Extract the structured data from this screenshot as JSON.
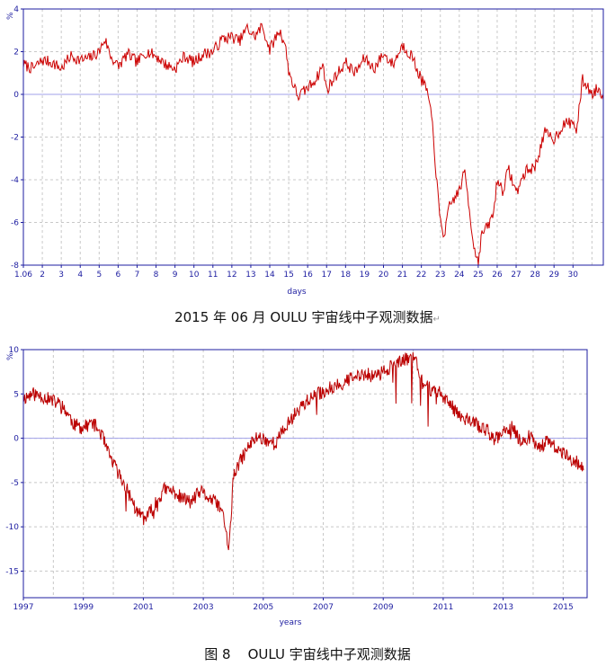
{
  "chart_data": [
    {
      "type": "line",
      "title": "2015 年 06 月 OULU 宇宙线中子观测数据",
      "ylabel": "%",
      "xlabel": "days",
      "ylim": [
        -8,
        4
      ],
      "yticks": [
        -8,
        -6,
        -4,
        -2,
        0,
        2,
        4
      ],
      "xlim": [
        1,
        31.6
      ],
      "xticks": [
        {
          "v": 1,
          "label": "1.06"
        },
        {
          "v": 2,
          "label": "2"
        },
        {
          "v": 3,
          "label": "3"
        },
        {
          "v": 4,
          "label": "4"
        },
        {
          "v": 5,
          "label": "5"
        },
        {
          "v": 6,
          "label": "6"
        },
        {
          "v": 7,
          "label": "7"
        },
        {
          "v": 8,
          "label": "8"
        },
        {
          "v": 9,
          "label": "9"
        },
        {
          "v": 10,
          "label": "10"
        },
        {
          "v": 11,
          "label": "11"
        },
        {
          "v": 12,
          "label": "12"
        },
        {
          "v": 13,
          "label": "13"
        },
        {
          "v": 14,
          "label": "14"
        },
        {
          "v": 15,
          "label": "15"
        },
        {
          "v": 16,
          "label": "16"
        },
        {
          "v": 17,
          "label": "17"
        },
        {
          "v": 18,
          "label": "18"
        },
        {
          "v": 19,
          "label": "19"
        },
        {
          "v": 20,
          "label": "20"
        },
        {
          "v": 21,
          "label": "21"
        },
        {
          "v": 22,
          "label": "22"
        },
        {
          "v": 23,
          "label": "23"
        },
        {
          "v": 24,
          "label": "24"
        },
        {
          "v": 25,
          "label": "25"
        },
        {
          "v": 26,
          "label": "26"
        },
        {
          "v": 27,
          "label": "27"
        },
        {
          "v": 28,
          "label": "28"
        },
        {
          "v": 29,
          "label": "29"
        },
        {
          "v": 30,
          "label": "30"
        }
      ],
      "grid": true,
      "line_color": "#cc0000",
      "series": [
        {
          "x": [
            1.0,
            1.5,
            2.0,
            2.5,
            3.0,
            3.5,
            4.0,
            4.5,
            5.0,
            5.3,
            5.6,
            6.0,
            6.5,
            7.0,
            7.5,
            8.0,
            8.5,
            9.0,
            9.5,
            10.0,
            10.5,
            11.0,
            11.5,
            12.0,
            12.4,
            12.8,
            13.2,
            13.6,
            14.0,
            14.5,
            14.8,
            15.0,
            15.3,
            15.5,
            16.0,
            16.5,
            16.8,
            17.0,
            17.5,
            18.0,
            18.5,
            19.0,
            19.5,
            20.0,
            20.5,
            21.0,
            21.5,
            21.8,
            22.0,
            22.3,
            22.6,
            22.8,
            23.0,
            23.2,
            23.5,
            24.0,
            24.3,
            24.6,
            24.8,
            25.0,
            25.2,
            25.5,
            25.8,
            26.0,
            26.3,
            26.6,
            27.0,
            27.5,
            28.0,
            28.5,
            29.0,
            29.5,
            30.0,
            30.2,
            30.5,
            30.8,
            31.0,
            31.3,
            31.6
          ],
          "y": [
            1.4,
            1.2,
            1.6,
            1.5,
            1.2,
            1.8,
            1.6,
            1.7,
            2.0,
            2.6,
            1.8,
            1.3,
            1.9,
            1.5,
            2.0,
            1.8,
            1.4,
            1.2,
            1.8,
            1.5,
            1.9,
            2.0,
            2.6,
            2.7,
            2.5,
            3.1,
            2.7,
            3.2,
            2.1,
            3.0,
            2.4,
            1.1,
            0.3,
            -0.1,
            0.3,
            0.8,
            1.4,
            0.2,
            0.9,
            1.5,
            1.0,
            1.7,
            1.2,
            1.9,
            1.4,
            2.3,
            1.8,
            1.1,
            0.7,
            0.2,
            -1.5,
            -4.0,
            -6.0,
            -6.6,
            -5.2,
            -4.5,
            -3.6,
            -5.9,
            -7.3,
            -7.8,
            -6.5,
            -6.2,
            -5.6,
            -4.0,
            -4.5,
            -3.5,
            -4.6,
            -3.6,
            -3.4,
            -1.8,
            -2.1,
            -1.4,
            -1.3,
            -1.7,
            0.7,
            0.3,
            0.0,
            0.3,
            -0.1
          ]
        }
      ]
    },
    {
      "type": "line",
      "title": "图 8    OULU 宇宙线中子观测数据",
      "ylabel": "%",
      "xlabel": "years",
      "ylim": [
        -18,
        10
      ],
      "yticks": [
        -15,
        -10,
        -5,
        0,
        5,
        10
      ],
      "xlim": [
        1997,
        2015.8
      ],
      "xticks": [
        {
          "v": 1997,
          "label": "1997"
        },
        {
          "v": 1999,
          "label": "1999"
        },
        {
          "v": 2001,
          "label": "2001"
        },
        {
          "v": 2003,
          "label": "2003"
        },
        {
          "v": 2005,
          "label": "2005"
        },
        {
          "v": 2007,
          "label": "2007"
        },
        {
          "v": 2009,
          "label": "2009"
        },
        {
          "v": 2011,
          "label": "2011"
        },
        {
          "v": 2013,
          "label": "2013"
        },
        {
          "v": 2015,
          "label": "2015"
        }
      ],
      "grid": true,
      "line_color": "#cc0000",
      "series": [
        {
          "x": [
            1997.0,
            1997.3,
            1997.6,
            1997.9,
            1998.2,
            1998.4,
            1998.7,
            1999.0,
            1999.3,
            1999.6,
            1999.8,
            2000.1,
            2000.4,
            2000.6,
            2000.8,
            2001.1,
            2001.4,
            2001.7,
            2002.0,
            2002.3,
            2002.6,
            2002.9,
            2003.2,
            2003.5,
            2003.7,
            2003.85,
            2004.0,
            2004.2,
            2004.5,
            2004.8,
            2005.1,
            2005.4,
            2005.7,
            2006.0,
            2006.3,
            2006.6,
            2006.8,
            2007.0,
            2007.3,
            2007.6,
            2008.0,
            2008.4,
            2008.8,
            2009.2,
            2009.6,
            2009.9,
            2010.1,
            2010.3,
            2010.6,
            2010.9,
            2011.2,
            2011.5,
            2011.8,
            2012.1,
            2012.4,
            2012.7,
            2013.0,
            2013.3,
            2013.6,
            2013.9,
            2014.2,
            2014.5,
            2014.8,
            2015.1,
            2015.4,
            2015.7
          ],
          "y": [
            4.5,
            5.0,
            4.8,
            4.3,
            3.9,
            3.2,
            1.5,
            1.2,
            1.8,
            0.5,
            -1.5,
            -3.5,
            -5.5,
            -6.8,
            -8.5,
            -9.0,
            -7.5,
            -5.8,
            -6.0,
            -6.8,
            -7.2,
            -6.0,
            -6.8,
            -7.5,
            -9.0,
            -13.0,
            -4.5,
            -2.8,
            -1.0,
            0.2,
            -0.2,
            -0.6,
            1.0,
            2.5,
            3.8,
            4.5,
            5.0,
            5.2,
            5.8,
            6.2,
            6.8,
            7.2,
            7.0,
            8.0,
            8.6,
            9.2,
            8.8,
            6.2,
            5.5,
            5.2,
            3.8,
            2.9,
            2.1,
            1.6,
            1.0,
            0.0,
            0.5,
            1.2,
            -0.4,
            0.2,
            -0.9,
            -0.4,
            -1.2,
            -2.0,
            -2.5,
            -3.6
          ]
        }
      ]
    }
  ]
}
